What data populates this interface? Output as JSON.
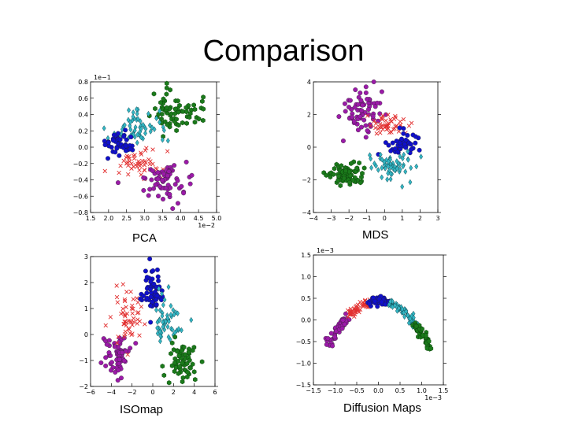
{
  "slide": {
    "title": "Comparison"
  },
  "colors": {
    "green": "#1b7a1b",
    "cyan": "#33b6c4",
    "blue": "#1010cc",
    "red": "#e23030",
    "purple": "#9b1aa8"
  },
  "chart_data": [
    {
      "type": "scatter",
      "caption": "PCA",
      "xlim": [
        1.5,
        5.0
      ],
      "ylim": [
        -0.8,
        0.8
      ],
      "xticks": [
        "1.5",
        "2.0",
        "2.5",
        "3.0",
        "3.5",
        "4.0",
        "4.5",
        "5.0"
      ],
      "yticks": [
        "0.8",
        "0.6",
        "0.4",
        "0.2",
        "0.0",
        "−0.2",
        "−0.4",
        "−0.6",
        "−0.8"
      ],
      "x_multiplier": "1e−2",
      "y_multiplier": "1e−1",
      "series": [
        {
          "color": "green",
          "marker": "hexagon",
          "cx": 3.9,
          "cy": 0.42,
          "sx": 0.35,
          "sy": 0.12,
          "n": 70
        },
        {
          "color": "cyan",
          "marker": "diamond",
          "cx": 2.8,
          "cy": 0.22,
          "sx": 0.4,
          "sy": 0.14,
          "n": 60
        },
        {
          "color": "blue",
          "marker": "circle",
          "cx": 2.3,
          "cy": 0.02,
          "sx": 0.25,
          "sy": 0.08,
          "n": 45
        },
        {
          "color": "red",
          "marker": "x",
          "cx": 2.8,
          "cy": -0.2,
          "sx": 0.3,
          "sy": 0.09,
          "n": 50
        },
        {
          "color": "purple",
          "marker": "circle",
          "cx": 3.6,
          "cy": -0.42,
          "sx": 0.35,
          "sy": 0.12,
          "n": 70
        }
      ]
    },
    {
      "type": "scatter",
      "caption": "MDS",
      "xlim": [
        -4,
        3
      ],
      "ylim": [
        -5,
        5
      ],
      "xticks": [
        "−4",
        "−3",
        "−2",
        "−1",
        "0",
        "1",
        "2",
        "3"
      ],
      "yticks": [
        "4",
        "2",
        "0",
        "−2",
        "−4"
      ],
      "series": [
        {
          "color": "purple",
          "marker": "circle",
          "cx": -1.2,
          "cy": 2.8,
          "sx": 0.6,
          "sy": 0.8,
          "n": 70
        },
        {
          "color": "red",
          "marker": "x",
          "cx": 0.3,
          "cy": 1.6,
          "sx": 0.6,
          "sy": 0.5,
          "n": 50
        },
        {
          "color": "blue",
          "marker": "circle",
          "cx": 1.1,
          "cy": 0.2,
          "sx": 0.5,
          "sy": 0.5,
          "n": 45
        },
        {
          "color": "cyan",
          "marker": "diamond",
          "cx": 0.4,
          "cy": -1.5,
          "sx": 0.7,
          "sy": 0.6,
          "n": 60
        },
        {
          "color": "green",
          "marker": "hexagon",
          "cx": -2.1,
          "cy": -2.2,
          "sx": 0.6,
          "sy": 0.45,
          "n": 70
        }
      ]
    },
    {
      "type": "scatter",
      "caption": "ISOmap",
      "xlim": [
        -6,
        6
      ],
      "ylim": [
        -2,
        3
      ],
      "xticks": [
        "−6",
        "−4",
        "−2",
        "0",
        "2",
        "4",
        "6"
      ],
      "yticks": [
        "3",
        "2",
        "1",
        "0",
        "−1",
        "−2"
      ],
      "series": [
        {
          "color": "purple",
          "marker": "circle",
          "cx": -3.5,
          "cy": -0.8,
          "sx": 0.6,
          "sy": 0.35,
          "n": 65
        },
        {
          "color": "red",
          "marker": "x",
          "cx": -2.3,
          "cy": 0.8,
          "sx": 0.7,
          "sy": 0.6,
          "n": 55
        },
        {
          "color": "blue",
          "marker": "circle",
          "cx": 0.0,
          "cy": 1.6,
          "sx": 0.5,
          "sy": 0.45,
          "n": 60
        },
        {
          "color": "cyan",
          "marker": "diamond",
          "cx": 1.5,
          "cy": 0.5,
          "sx": 0.7,
          "sy": 0.5,
          "n": 55
        },
        {
          "color": "green",
          "marker": "hexagon",
          "cx": 3.0,
          "cy": -1.0,
          "sx": 0.7,
          "sy": 0.4,
          "n": 60
        }
      ]
    },
    {
      "type": "scatter",
      "caption": "Diffusion Maps",
      "xlim": [
        -1.5,
        1.5
      ],
      "ylim": [
        -1.5,
        1.5
      ],
      "xticks": [
        "−1.5",
        "−1.0",
        "−0.5",
        "0.0",
        "0.5",
        "1.0",
        "1.5"
      ],
      "yticks": [
        "1.5",
        "1.0",
        "0.5",
        "0.0",
        "−0.5",
        "−1.0",
        "−1.5"
      ],
      "x_multiplier": "1e−3",
      "y_multiplier": "1e−3",
      "series": [
        {
          "color": "purple",
          "marker": "circle",
          "path": "arc",
          "t0": -1.15,
          "t1": -0.7,
          "n": 60
        },
        {
          "color": "red",
          "marker": "x",
          "path": "arc",
          "t0": -0.7,
          "t1": -0.25,
          "n": 50
        },
        {
          "color": "blue",
          "marker": "circle",
          "path": "arc",
          "t0": -0.2,
          "t1": 0.25,
          "n": 55
        },
        {
          "color": "cyan",
          "marker": "diamond",
          "path": "arc",
          "t0": 0.25,
          "t1": 0.9,
          "n": 60
        },
        {
          "color": "green",
          "marker": "hexagon",
          "path": "arc",
          "t0": 0.85,
          "t1": 1.2,
          "n": 50
        }
      ]
    }
  ]
}
